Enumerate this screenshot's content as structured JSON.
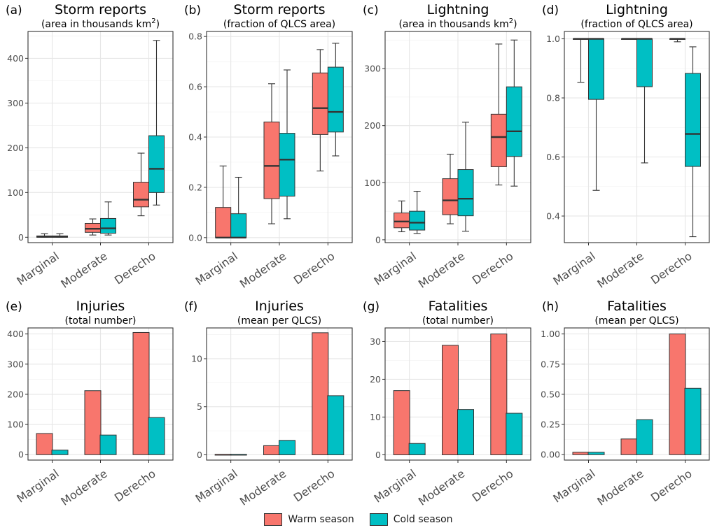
{
  "colors": {
    "warm": "#F8766D",
    "cold": "#00BFC4"
  },
  "legend": {
    "warm": "Warm season",
    "cold": "Cold season"
  },
  "chart_data": [
    {
      "type": "box",
      "tag": "(a)",
      "title": "Storm reports",
      "subtitle": "(area in thousands km",
      "subtitle_sup": "2",
      "subtitle_close": ")",
      "categories": [
        "Marginal",
        "Moderate",
        "Derecho"
      ],
      "ylim": [
        -12,
        460
      ],
      "yticks": [
        0,
        100,
        200,
        300,
        400
      ],
      "series": [
        {
          "name": "Warm season",
          "stats": [
            [
              0,
              0,
              1,
              3,
              8
            ],
            [
              5,
              11,
              19,
              31,
              41
            ],
            [
              48,
              68,
              84,
              123,
              188
            ]
          ]
        },
        {
          "name": "Cold season",
          "stats": [
            [
              0,
              0,
              1,
              3,
              8
            ],
            [
              5,
              9,
              20,
              42,
              79
            ],
            [
              72,
              100,
              153,
              227,
              440
            ]
          ]
        }
      ]
    },
    {
      "type": "box",
      "tag": "(b)",
      "title": "Storm reports",
      "subtitle": "(fraction of QLCS area)",
      "categories": [
        "Marginal",
        "Moderate",
        "Derecho"
      ],
      "ylim": [
        -0.02,
        0.82
      ],
      "yticks": [
        0.0,
        0.2,
        0.4,
        0.6,
        0.8
      ],
      "tick_decimals": 1,
      "series": [
        {
          "name": "Warm season",
          "stats": [
            [
              0,
              0,
              0,
              0.12,
              0.285
            ],
            [
              0.055,
              0.155,
              0.285,
              0.46,
              0.612
            ],
            [
              0.265,
              0.41,
              0.515,
              0.655,
              0.748
            ]
          ]
        },
        {
          "name": "Cold season",
          "stats": [
            [
              0,
              0,
              0,
              0.095,
              0.24
            ],
            [
              0.075,
              0.165,
              0.31,
              0.415,
              0.667
            ],
            [
              0.325,
              0.42,
              0.5,
              0.678,
              0.773
            ]
          ]
        }
      ]
    },
    {
      "type": "box",
      "tag": "(c)",
      "title": "Lightning",
      "subtitle": "(area in thousands km",
      "subtitle_sup": "2",
      "subtitle_close": ")",
      "categories": [
        "Marginal",
        "Moderate",
        "Derecho"
      ],
      "ylim": [
        -5,
        365
      ],
      "yticks": [
        0,
        100,
        200,
        300
      ],
      "series": [
        {
          "name": "Warm season",
          "stats": [
            [
              14,
              21,
              32,
              47,
              68
            ],
            [
              28,
              44,
              69,
              107,
              150
            ],
            [
              96,
              128,
              180,
              220,
              343
            ]
          ]
        },
        {
          "name": "Cold season",
          "stats": [
            [
              11,
              17,
              30,
              50,
              85
            ],
            [
              15,
              42,
              72,
              123,
              206
            ],
            [
              94,
              146,
              190,
              268,
              350
            ]
          ]
        }
      ]
    },
    {
      "type": "box",
      "tag": "(d)",
      "title": "Lightning",
      "subtitle": "(fraction of QLCS area)",
      "categories": [
        "Marginal",
        "Moderate",
        "Derecho"
      ],
      "ylim": [
        0.31,
        1.025
      ],
      "yticks": [
        0.4,
        0.6,
        0.8,
        1.0
      ],
      "tick_decimals": 1,
      "series": [
        {
          "name": "Warm season",
          "stats": [
            [
              0.853,
              1.0,
              1.0,
              1.0,
              1.0
            ],
            [
              1.0,
              1.0,
              1.0,
              1.0,
              1.0
            ],
            [
              0.99,
              1.0,
              1.0,
              1.0,
              1.0
            ]
          ]
        },
        {
          "name": "Cold season",
          "stats": [
            [
              0.487,
              0.795,
              1.0,
              1.0,
              1.0
            ],
            [
              0.58,
              0.838,
              1.0,
              1.0,
              1.0
            ],
            [
              0.33,
              0.568,
              0.678,
              0.883,
              0.973
            ]
          ]
        }
      ]
    },
    {
      "type": "bar",
      "tag": "(e)",
      "title": "Injuries",
      "subtitle": "(total number)",
      "categories": [
        "Marginal",
        "Moderate",
        "Derecho"
      ],
      "ylim": [
        -18,
        420
      ],
      "yticks": [
        0,
        100,
        200,
        300,
        400
      ],
      "series": [
        {
          "name": "Warm season",
          "values": [
            70,
            212,
            405
          ]
        },
        {
          "name": "Cold season",
          "values": [
            15,
            65,
            123
          ]
        }
      ]
    },
    {
      "type": "bar",
      "tag": "(f)",
      "title": "Injuries",
      "subtitle": "(mean per QLCS)",
      "categories": [
        "Marginal",
        "Moderate",
        "Derecho"
      ],
      "ylim": [
        -0.55,
        13.2
      ],
      "yticks": [
        0,
        5,
        10
      ],
      "series": [
        {
          "name": "Warm season",
          "values": [
            0.05,
            0.95,
            12.7
          ]
        },
        {
          "name": "Cold season",
          "values": [
            0.05,
            1.5,
            6.15
          ]
        }
      ]
    },
    {
      "type": "bar",
      "tag": "(g)",
      "title": "Fatalities",
      "subtitle": "(total number)",
      "categories": [
        "Marginal",
        "Moderate",
        "Derecho"
      ],
      "ylim": [
        -1.4,
        33.6
      ],
      "yticks": [
        0,
        10,
        20,
        30
      ],
      "series": [
        {
          "name": "Warm season",
          "values": [
            17,
            29,
            32
          ]
        },
        {
          "name": "Cold season",
          "values": [
            3,
            12,
            11
          ]
        }
      ]
    },
    {
      "type": "bar",
      "tag": "(h)",
      "title": "Fatalities",
      "subtitle": "(mean per QLCS)",
      "categories": [
        "Marginal",
        "Moderate",
        "Derecho"
      ],
      "ylim": [
        -0.045,
        1.05
      ],
      "yticks": [
        0.0,
        0.25,
        0.5,
        0.75,
        1.0
      ],
      "tick_decimals": 2,
      "series": [
        {
          "name": "Warm season",
          "values": [
            0.02,
            0.13,
            1.0
          ]
        },
        {
          "name": "Cold season",
          "values": [
            0.02,
            0.29,
            0.55
          ]
        }
      ]
    }
  ]
}
